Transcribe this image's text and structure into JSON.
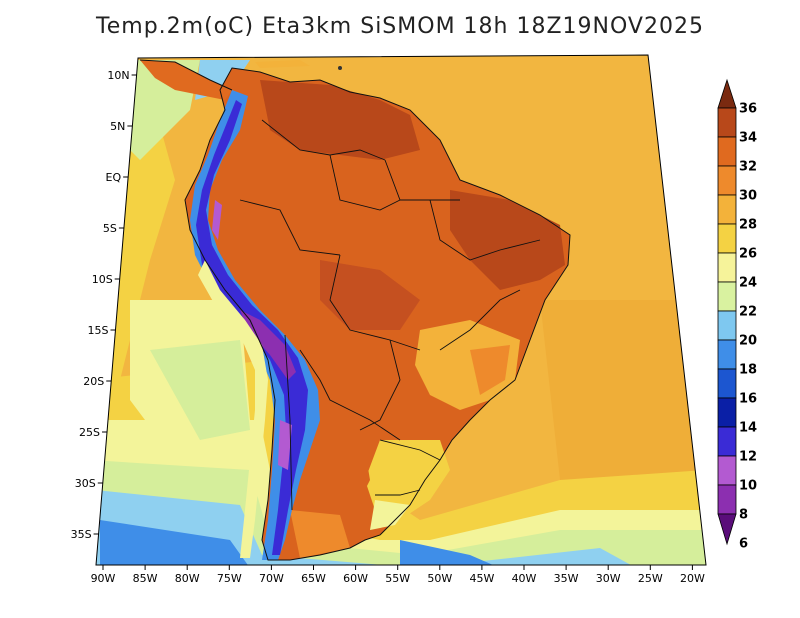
{
  "title": "Temp.2m(oC) Eta3km SiSMOM 18h 18Z19NOV2025",
  "lat_ticks": [
    "10N",
    "5N",
    "EQ",
    "5S",
    "10S",
    "15S",
    "20S",
    "25S",
    "30S",
    "35S"
  ],
  "lon_ticks": [
    "90W",
    "85W",
    "80W",
    "75W",
    "70W",
    "65W",
    "60W",
    "55W",
    "50W",
    "45W",
    "40W",
    "35W",
    "30W",
    "25W",
    "20W"
  ],
  "colorbar": {
    "labels": [
      "6",
      "8",
      "10",
      "12",
      "14",
      "16",
      "18",
      "20",
      "22",
      "24",
      "26",
      "28",
      "30",
      "32",
      "34",
      "36"
    ],
    "colors": [
      "#5a0d7a",
      "#8c2fb0",
      "#b35ad1",
      "#3a2bd6",
      "#0a1fa6",
      "#1c56d0",
      "#3f8ee8",
      "#7ec8f0",
      "#d9f2a0",
      "#f6f39a",
      "#f4d243",
      "#f3b23a",
      "#ee8a2c",
      "#e06a1f",
      "#b8481a",
      "#7a2a10"
    ]
  },
  "palette": {
    "ocean_warm": "#f2b640",
    "ocean_mid": "#f4d243",
    "ocean_cool": "#f3f49a",
    "ocean_green": "#d5ee9b",
    "ocean_blue": "#8fd0f0",
    "land_hot": "#d9631e",
    "land_very_hot": "#b8481a",
    "andes_cold": "#3a2bd6"
  }
}
